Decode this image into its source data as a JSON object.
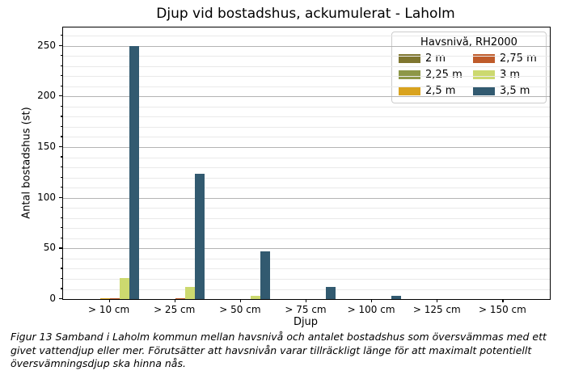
{
  "figure": {
    "caption": "Figur 13 Samband i Laholm kommun mellan havsnivå och antalet bostadshus som översvämmas med ett givet vattendjup eller mer. Förutsätter att havsnivån varar tillräckligt länge för att maximalt potentiellt översvämningsdjup ska hinna nås."
  },
  "chart_data": {
    "type": "bar",
    "title": "Djup vid bostadshus, ackumulerat - Laholm",
    "xlabel": "Djup",
    "ylabel": "Antal bostadshus (st)",
    "categories": [
      "> 10 cm",
      "> 25 cm",
      "> 50 cm",
      "> 75 cm",
      "> 100 cm",
      "> 125 cm",
      "> 150 cm"
    ],
    "series": [
      {
        "name": "2 m",
        "color": "#7f762f",
        "values": [
          0,
          0,
          0,
          0,
          0,
          0,
          0
        ]
      },
      {
        "name": "2,25 m",
        "color": "#8d9748",
        "values": [
          0,
          0,
          0,
          0,
          0,
          0,
          0
        ]
      },
      {
        "name": "2,5 m",
        "color": "#d9a31f",
        "values": [
          1,
          0,
          0,
          0,
          0,
          0,
          0
        ]
      },
      {
        "name": "2,75 m",
        "color": "#bf5b2a",
        "values": [
          1,
          1,
          0,
          0,
          0,
          0,
          0
        ]
      },
      {
        "name": "3 m",
        "color": "#ccd96f",
        "values": [
          21,
          12,
          3,
          0,
          0,
          0,
          0
        ]
      },
      {
        "name": "3,5 m",
        "color": "#325a70",
        "values": [
          250,
          124,
          47,
          12,
          3,
          0,
          0
        ]
      }
    ],
    "legend": {
      "title": "Havsnivå, RH2000",
      "position": "upper right",
      "columns": 2
    },
    "y_ticks": [
      0,
      50,
      100,
      150,
      200,
      250
    ],
    "ylim": [
      0,
      268
    ],
    "grid": {
      "major_step": 50,
      "minor_step": 10,
      "major_color": "#b4b4b4",
      "minor_color": "#e9e9e9"
    }
  }
}
